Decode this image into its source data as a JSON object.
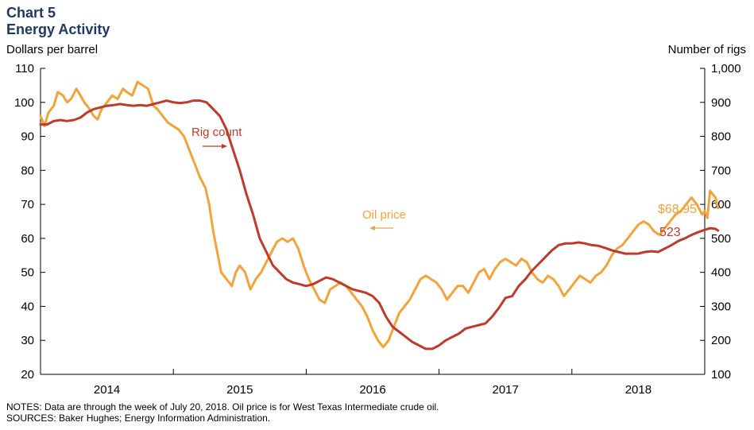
{
  "title": "Chart 5",
  "subtitle": "Energy Activity",
  "notes": "NOTES: Data are through the week of July 20, 2018. Oil price is for West Texas Intermediate  crude oil.",
  "sources": "SOURCES: Baker Hughes; Energy Information  Administration.",
  "chart_data": {
    "type": "line",
    "title": "Chart 5",
    "subtitle": "Energy Activity",
    "ylabel_left": "Dollars per barrel",
    "ylabel_right": "Number of rigs",
    "ylim_left": [
      20,
      110
    ],
    "ylim_right": [
      100,
      1000
    ],
    "xlim": [
      2013.5,
      2018.5
    ],
    "x_ticks": [
      "2014",
      "2015",
      "2016",
      "2017",
      "2018"
    ],
    "y_ticks_left": [
      "20",
      "30",
      "40",
      "50",
      "60",
      "70",
      "80",
      "90",
      "100",
      "110"
    ],
    "y_ticks_right": [
      "100",
      "200",
      "300",
      "400",
      "500",
      "600",
      "700",
      "800",
      "900",
      "1,000"
    ],
    "grid": false,
    "annotations": [
      {
        "text": "Rig count",
        "color": "#c0392b",
        "arrow": "right"
      },
      {
        "text": "Oil price",
        "color": "#f4a33a",
        "arrow": "left"
      },
      {
        "text": "$68.95",
        "color": "#f4a33a"
      },
      {
        "text": "523",
        "color": "#c0392b"
      }
    ],
    "series": [
      {
        "name": "Oil price",
        "axis": "left",
        "color": "#f4a33a",
        "points": [
          [
            2013.5,
            96
          ],
          [
            2013.53,
            93
          ],
          [
            2013.56,
            97
          ],
          [
            2013.6,
            99
          ],
          [
            2013.63,
            103
          ],
          [
            2013.67,
            102
          ],
          [
            2013.7,
            100
          ],
          [
            2013.73,
            101
          ],
          [
            2013.77,
            104
          ],
          [
            2013.8,
            102
          ],
          [
            2013.83,
            100
          ],
          [
            2013.87,
            98
          ],
          [
            2013.9,
            96
          ],
          [
            2013.93,
            95
          ],
          [
            2013.96,
            98
          ],
          [
            2014.0,
            100
          ],
          [
            2014.04,
            102
          ],
          [
            2014.08,
            101
          ],
          [
            2014.12,
            104
          ],
          [
            2014.15,
            103
          ],
          [
            2014.19,
            102
          ],
          [
            2014.23,
            106
          ],
          [
            2014.27,
            105
          ],
          [
            2014.31,
            104
          ],
          [
            2014.35,
            99
          ],
          [
            2014.38,
            98
          ],
          [
            2014.42,
            96
          ],
          [
            2014.46,
            94
          ],
          [
            2014.5,
            93
          ],
          [
            2014.54,
            92
          ],
          [
            2014.58,
            90
          ],
          [
            2014.62,
            86
          ],
          [
            2014.66,
            82
          ],
          [
            2014.7,
            78
          ],
          [
            2014.74,
            75
          ],
          [
            2014.77,
            70
          ],
          [
            2014.8,
            62
          ],
          [
            2014.83,
            56
          ],
          [
            2014.86,
            50
          ],
          [
            2014.9,
            48
          ],
          [
            2014.94,
            46
          ],
          [
            2014.97,
            50
          ],
          [
            2015.0,
            52
          ],
          [
            2015.04,
            50
          ],
          [
            2015.08,
            45
          ],
          [
            2015.12,
            48
          ],
          [
            2015.16,
            50
          ],
          [
            2015.2,
            53
          ],
          [
            2015.24,
            56
          ],
          [
            2015.28,
            59
          ],
          [
            2015.32,
            60
          ],
          [
            2015.36,
            59
          ],
          [
            2015.4,
            60
          ],
          [
            2015.44,
            57
          ],
          [
            2015.48,
            52
          ],
          [
            2015.52,
            48
          ],
          [
            2015.56,
            45
          ],
          [
            2015.6,
            42
          ],
          [
            2015.64,
            41
          ],
          [
            2015.68,
            45
          ],
          [
            2015.72,
            46
          ],
          [
            2015.76,
            47
          ],
          [
            2015.8,
            46
          ],
          [
            2015.84,
            44
          ],
          [
            2015.88,
            42
          ],
          [
            2015.92,
            40
          ],
          [
            2015.96,
            37
          ],
          [
            2016.0,
            33
          ],
          [
            2016.04,
            30
          ],
          [
            2016.08,
            28
          ],
          [
            2016.12,
            30
          ],
          [
            2016.16,
            34
          ],
          [
            2016.2,
            38
          ],
          [
            2016.24,
            40
          ],
          [
            2016.28,
            42
          ],
          [
            2016.32,
            45
          ],
          [
            2016.36,
            48
          ],
          [
            2016.4,
            49
          ],
          [
            2016.44,
            48
          ],
          [
            2016.48,
            47
          ],
          [
            2016.52,
            45
          ],
          [
            2016.56,
            42
          ],
          [
            2016.6,
            44
          ],
          [
            2016.64,
            46
          ],
          [
            2016.68,
            46
          ],
          [
            2016.72,
            44
          ],
          [
            2016.76,
            47
          ],
          [
            2016.8,
            50
          ],
          [
            2016.84,
            51
          ],
          [
            2016.88,
            48
          ],
          [
            2016.92,
            51
          ],
          [
            2016.96,
            53
          ],
          [
            2017.0,
            54
          ],
          [
            2017.04,
            53
          ],
          [
            2017.08,
            52
          ],
          [
            2017.12,
            54
          ],
          [
            2017.16,
            53
          ],
          [
            2017.2,
            50
          ],
          [
            2017.24,
            48
          ],
          [
            2017.28,
            47
          ],
          [
            2017.32,
            49
          ],
          [
            2017.36,
            48
          ],
          [
            2017.4,
            46
          ],
          [
            2017.44,
            43
          ],
          [
            2017.48,
            45
          ],
          [
            2017.52,
            47
          ],
          [
            2017.56,
            49
          ],
          [
            2017.6,
            48
          ],
          [
            2017.64,
            47
          ],
          [
            2017.68,
            49
          ],
          [
            2017.72,
            50
          ],
          [
            2017.76,
            52
          ],
          [
            2017.8,
            55
          ],
          [
            2017.84,
            57
          ],
          [
            2017.88,
            58
          ],
          [
            2017.92,
            60
          ],
          [
            2017.96,
            62
          ],
          [
            2018.0,
            64
          ],
          [
            2018.04,
            65
          ],
          [
            2018.08,
            64
          ],
          [
            2018.12,
            62
          ],
          [
            2018.16,
            61
          ],
          [
            2018.2,
            63
          ],
          [
            2018.24,
            65
          ],
          [
            2018.28,
            67
          ],
          [
            2018.32,
            68
          ],
          [
            2018.36,
            70
          ],
          [
            2018.4,
            72
          ],
          [
            2018.44,
            70
          ],
          [
            2018.48,
            67
          ],
          [
            2018.5,
            68
          ],
          [
            2018.52,
            66
          ],
          [
            2018.54,
            74
          ],
          [
            2018.56,
            73
          ],
          [
            2018.58,
            72
          ],
          [
            2018.6,
            68.95
          ]
        ]
      },
      {
        "name": "Rig count",
        "axis": "right",
        "color": "#c0392b",
        "points": [
          [
            2013.5,
            835
          ],
          [
            2013.55,
            835
          ],
          [
            2013.6,
            845
          ],
          [
            2013.65,
            848
          ],
          [
            2013.7,
            845
          ],
          [
            2013.75,
            848
          ],
          [
            2013.8,
            855
          ],
          [
            2013.85,
            870
          ],
          [
            2013.9,
            880
          ],
          [
            2013.95,
            885
          ],
          [
            2014.0,
            890
          ],
          [
            2014.05,
            892
          ],
          [
            2014.1,
            895
          ],
          [
            2014.15,
            892
          ],
          [
            2014.2,
            890
          ],
          [
            2014.25,
            892
          ],
          [
            2014.3,
            890
          ],
          [
            2014.35,
            895
          ],
          [
            2014.4,
            900
          ],
          [
            2014.45,
            905
          ],
          [
            2014.5,
            900
          ],
          [
            2014.55,
            898
          ],
          [
            2014.6,
            900
          ],
          [
            2014.65,
            905
          ],
          [
            2014.7,
            905
          ],
          [
            2014.75,
            900
          ],
          [
            2014.8,
            880
          ],
          [
            2014.85,
            860
          ],
          [
            2014.9,
            820
          ],
          [
            2014.95,
            760
          ],
          [
            2015.0,
            700
          ],
          [
            2015.05,
            630
          ],
          [
            2015.1,
            570
          ],
          [
            2015.15,
            500
          ],
          [
            2015.2,
            460
          ],
          [
            2015.25,
            420
          ],
          [
            2015.3,
            400
          ],
          [
            2015.35,
            380
          ],
          [
            2015.4,
            370
          ],
          [
            2015.45,
            365
          ],
          [
            2015.5,
            360
          ],
          [
            2015.55,
            365
          ],
          [
            2015.6,
            375
          ],
          [
            2015.65,
            385
          ],
          [
            2015.7,
            380
          ],
          [
            2015.75,
            370
          ],
          [
            2015.8,
            360
          ],
          [
            2015.85,
            350
          ],
          [
            2015.9,
            345
          ],
          [
            2015.95,
            340
          ],
          [
            2016.0,
            330
          ],
          [
            2016.05,
            310
          ],
          [
            2016.1,
            270
          ],
          [
            2016.15,
            240
          ],
          [
            2016.2,
            225
          ],
          [
            2016.25,
            210
          ],
          [
            2016.3,
            195
          ],
          [
            2016.35,
            185
          ],
          [
            2016.4,
            175
          ],
          [
            2016.45,
            175
          ],
          [
            2016.5,
            185
          ],
          [
            2016.55,
            200
          ],
          [
            2016.6,
            210
          ],
          [
            2016.65,
            220
          ],
          [
            2016.7,
            235
          ],
          [
            2016.75,
            240
          ],
          [
            2016.8,
            245
          ],
          [
            2016.85,
            250
          ],
          [
            2016.9,
            270
          ],
          [
            2016.95,
            295
          ],
          [
            2017.0,
            325
          ],
          [
            2017.05,
            330
          ],
          [
            2017.1,
            360
          ],
          [
            2017.15,
            380
          ],
          [
            2017.2,
            405
          ],
          [
            2017.25,
            425
          ],
          [
            2017.3,
            445
          ],
          [
            2017.35,
            465
          ],
          [
            2017.4,
            480
          ],
          [
            2017.45,
            485
          ],
          [
            2017.5,
            485
          ],
          [
            2017.55,
            488
          ],
          [
            2017.6,
            485
          ],
          [
            2017.65,
            480
          ],
          [
            2017.7,
            478
          ],
          [
            2017.75,
            472
          ],
          [
            2017.8,
            465
          ],
          [
            2017.85,
            460
          ],
          [
            2017.9,
            455
          ],
          [
            2017.95,
            455
          ],
          [
            2018.0,
            455
          ],
          [
            2018.05,
            460
          ],
          [
            2018.1,
            462
          ],
          [
            2018.15,
            460
          ],
          [
            2018.2,
            470
          ],
          [
            2018.25,
            480
          ],
          [
            2018.3,
            492
          ],
          [
            2018.35,
            500
          ],
          [
            2018.4,
            510
          ],
          [
            2018.45,
            518
          ],
          [
            2018.5,
            525
          ],
          [
            2018.54,
            530
          ],
          [
            2018.58,
            528
          ],
          [
            2018.6,
            523
          ]
        ]
      }
    ]
  }
}
